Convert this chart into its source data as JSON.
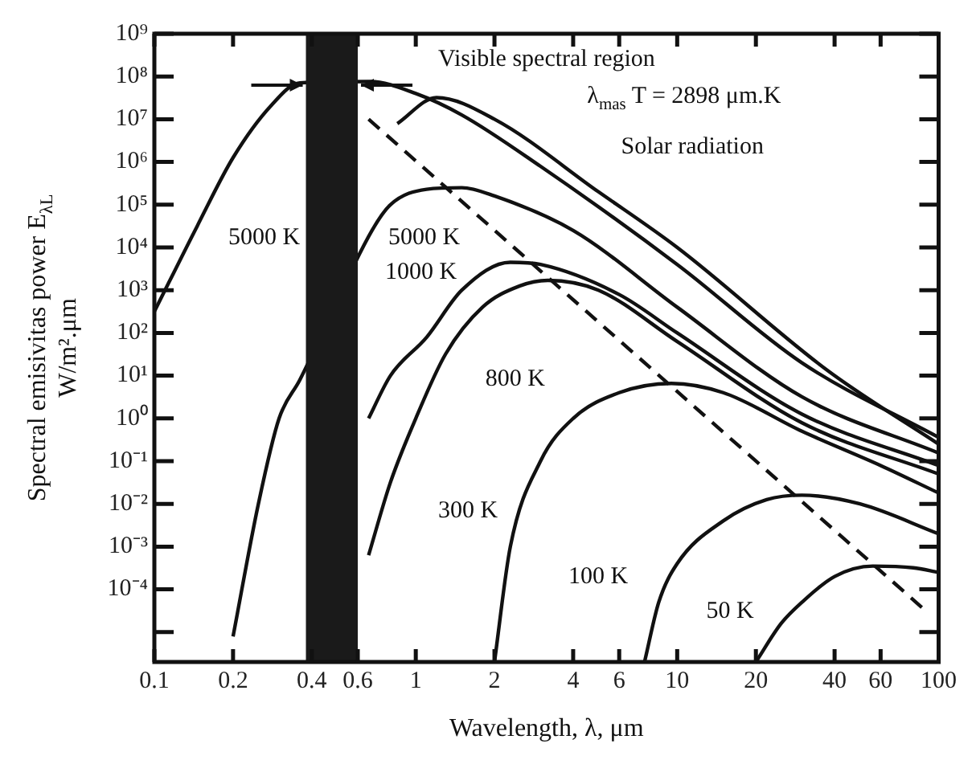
{
  "chart_data": {
    "type": "line",
    "xlabel": "Wavelength, λ, μm",
    "ylabel": "Spectral emisivitas power E$_{λL}$\nW/m².μm",
    "log": "xy",
    "grid": false,
    "legend": false,
    "marker": "none",
    "xlim": [
      0.1,
      100
    ],
    "xticks": [
      0.1,
      0.2,
      0.4,
      0.6,
      1,
      2,
      4,
      6,
      10,
      20,
      40,
      60,
      100
    ],
    "ylim": [
      2e-06,
      1000000000.0
    ],
    "yticks": [
      {
        "value": 1000000000.0,
        "label": "10⁹"
      },
      {
        "value": 100000000.0,
        "label": "10⁸"
      },
      {
        "value": 10000000.0,
        "label": "10⁷"
      },
      {
        "value": 1000000.0,
        "label": "10⁶"
      },
      {
        "value": 100000.0,
        "label": "10⁵"
      },
      {
        "value": 10000.0,
        "label": "10⁴"
      },
      {
        "value": 1000.0,
        "label": "10³"
      },
      {
        "value": 100.0,
        "label": "10²"
      },
      {
        "value": 10.0,
        "label": "10¹"
      },
      {
        "value": 1,
        "label": "10⁰"
      },
      {
        "value": 0.1,
        "label": "10⁻¹"
      },
      {
        "value": 0.01,
        "label": "10⁻²"
      },
      {
        "value": 0.001,
        "label": "10⁻³"
      },
      {
        "value": 0.0001,
        "label": "10⁻⁴"
      },
      {
        "value": 1e-05,
        "label": null
      }
    ],
    "series": [
      {
        "color": "#111111",
        "x": [
          0.1,
          0.146,
          0.2,
          0.28,
          0.36,
          0.67,
          1.0,
          1.5,
          3,
          10,
          30,
          100
        ],
        "values": [
          316,
          32000,
          1260000,
          21000000,
          71000000,
          76000000,
          40000000,
          12600000,
          790000,
          4000,
          20,
          0.36
        ]
      },
      {
        "color": "#111111",
        "x": [
          0.85,
          1.2,
          2,
          5,
          10,
          38,
          100
        ],
        "values": [
          7900000,
          32000000,
          10000000,
          200000,
          10000,
          12.6,
          0.25
        ]
      },
      {
        "color": "#111111",
        "x": [
          0.2,
          0.25,
          0.3,
          0.36,
          0.68,
          0.8,
          1.1,
          1.5,
          2,
          4,
          10,
          30,
          100
        ],
        "values": [
          7.9e-06,
          0.01,
          1,
          7.9,
          25000,
          100000,
          230000,
          250000,
          160000,
          25000,
          400,
          3.2,
          0.155
        ]
      },
      {
        "color": "#111111",
        "x": [
          0.66,
          0.8,
          1.1,
          1.5,
          2.3,
          3,
          6,
          10,
          30,
          100
        ],
        "values": [
          1,
          10,
          79,
          1000,
          4500,
          4000,
          790,
          100,
          1.26,
          0.079
        ]
      },
      {
        "color": "#111111",
        "x": [
          0.66,
          0.8,
          1.0,
          1.3,
          1.8,
          2.5,
          3.2,
          5,
          10,
          30,
          100
        ],
        "values": [
          0.00063,
          0.032,
          1,
          32,
          400,
          1260,
          1700,
          1000,
          63,
          0.79,
          0.05
        ]
      },
      {
        "color": "#111111",
        "x": [
          2,
          2.3,
          3,
          4,
          6,
          9.5,
          15,
          30,
          60,
          100
        ],
        "values": [
          2e-06,
          0.001,
          0.1,
          1,
          4,
          6.6,
          4,
          0.5,
          0.079,
          0.018
        ]
      },
      {
        "color": "#111111",
        "x": [
          7.5,
          8.5,
          10,
          15,
          22,
          30,
          50,
          100
        ],
        "values": [
          2e-06,
          5e-05,
          0.0004,
          0.004,
          0.0126,
          0.016,
          0.01,
          0.002
        ]
      },
      {
        "color": "#111111",
        "x": [
          20,
          25,
          30,
          40,
          56,
          80,
          100
        ],
        "values": [
          2e-06,
          1.6e-05,
          5e-05,
          0.0002,
          0.00035,
          0.00032,
          0.00025
        ]
      },
      {
        "color": "#111111",
        "line_style": "dashed",
        "x": [
          0.66,
          89
        ],
        "values": [
          10000000,
          3.2e-05
        ]
      }
    ],
    "bands": [
      {
        "axis": "x",
        "from": 0.38,
        "to": 0.6,
        "label": "Visible spectral region",
        "color": "#1a1a1a"
      }
    ],
    "annotations": [
      "5000 K",
      "5000 K",
      "1000 K",
      "800 K",
      "300 K",
      "100 K",
      "50 K",
      "λ$_{mas}$ T = 2898 μm.K",
      "Solar radiation"
    ]
  }
}
